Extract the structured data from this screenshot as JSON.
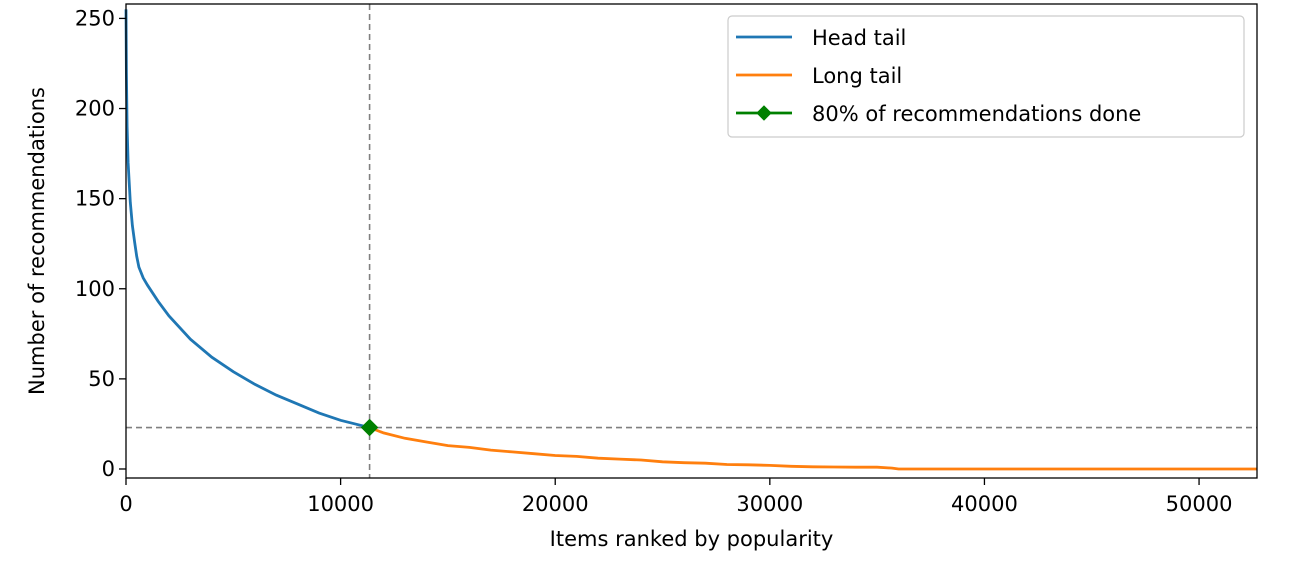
{
  "chart_data": {
    "type": "line",
    "title": "",
    "xlabel": "Items ranked by popularity",
    "ylabel": "Number of recommendations",
    "xlim": [
      0,
      52700
    ],
    "ylim": [
      -5,
      258
    ],
    "xticks": [
      0,
      10000,
      20000,
      30000,
      40000,
      50000
    ],
    "yticks": [
      0,
      50,
      100,
      150,
      200,
      250
    ],
    "grid": false,
    "legend_position": "top-right",
    "colors": {
      "head": "#1f77b4",
      "long": "#ff7f0e",
      "marker": "#008000",
      "reference": "#808080"
    },
    "threshold": {
      "x": 11350,
      "y": 23
    },
    "series": [
      {
        "name": "Head tail",
        "x": [
          0,
          20,
          50,
          100,
          200,
          300,
          400,
          500,
          600,
          800,
          1000,
          1500,
          2000,
          3000,
          4000,
          5000,
          6000,
          7000,
          8000,
          9000,
          10000,
          11000,
          11350
        ],
        "y": [
          255,
          220,
          190,
          170,
          148,
          135,
          126,
          118,
          112,
          106,
          102,
          93,
          85,
          72,
          62,
          54,
          47,
          41,
          36,
          31,
          27,
          24,
          23
        ]
      },
      {
        "name": "Long tail",
        "x": [
          11350,
          12000,
          13000,
          14000,
          15000,
          16000,
          17000,
          18000,
          19000,
          20000,
          21000,
          22000,
          23000,
          24000,
          25000,
          26000,
          27000,
          28000,
          29000,
          30000,
          31000,
          32000,
          33000,
          34000,
          35000,
          35700,
          36000,
          38000,
          40000,
          45000,
          50000,
          52700
        ],
        "y": [
          23,
          20,
          17,
          15,
          13,
          12,
          10.5,
          9.5,
          8.5,
          7.5,
          7,
          6,
          5.5,
          5,
          4,
          3.5,
          3.2,
          2.5,
          2.3,
          2,
          1.5,
          1.2,
          1.1,
          1,
          1,
          0.5,
          0,
          0,
          0,
          0,
          0,
          0
        ]
      },
      {
        "name": "80% of recommendations done",
        "x": [
          11350
        ],
        "y": [
          23
        ]
      }
    ]
  }
}
